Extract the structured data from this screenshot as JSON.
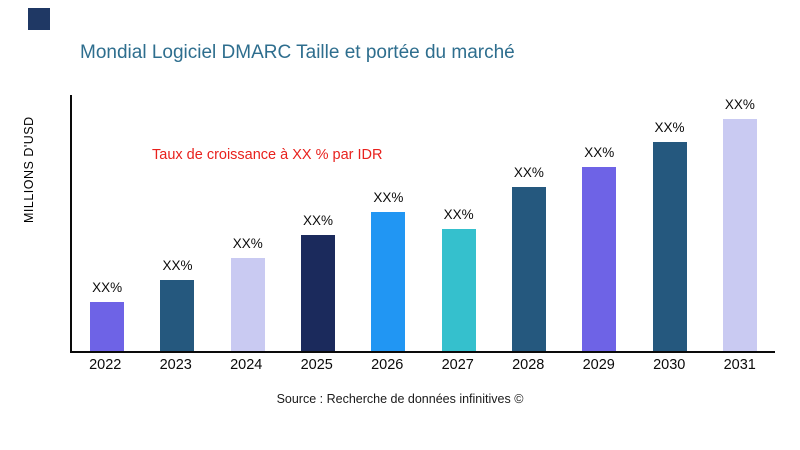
{
  "header": {
    "title": "Mondial Logiciel DMARC Taille et portée du marché"
  },
  "chart_data": {
    "type": "bar",
    "title": "Mondial Logiciel DMARC Taille et portée du marché",
    "ylabel": "MILLIONS D'USD",
    "xlabel": "",
    "annotation": "Taux de croissance à XX % par IDR",
    "annotation_color": "#e8211d",
    "categories": [
      "2022",
      "2023",
      "2024",
      "2025",
      "2026",
      "2027",
      "2028",
      "2029",
      "2030",
      "2031"
    ],
    "values": [
      49,
      71,
      93,
      116,
      139,
      122,
      164,
      184,
      209,
      232
    ],
    "value_unit": "relative-height-px",
    "bar_labels": [
      "XX%",
      "XX%",
      "XX%",
      "XX%",
      "XX%",
      "XX%",
      "XX%",
      "XX%",
      "XX%",
      "XX%"
    ],
    "bar_colors": [
      "#6e63e6",
      "#25587e",
      "#c9caf2",
      "#1b2a5c",
      "#2196f3",
      "#35c0cd",
      "#25587e",
      "#6e63e6",
      "#25587e",
      "#c9caf2"
    ],
    "ylim": [
      0,
      258
    ],
    "grid": false,
    "legend": false
  },
  "footer": {
    "source": "Source : Recherche de données infinitives ©"
  }
}
